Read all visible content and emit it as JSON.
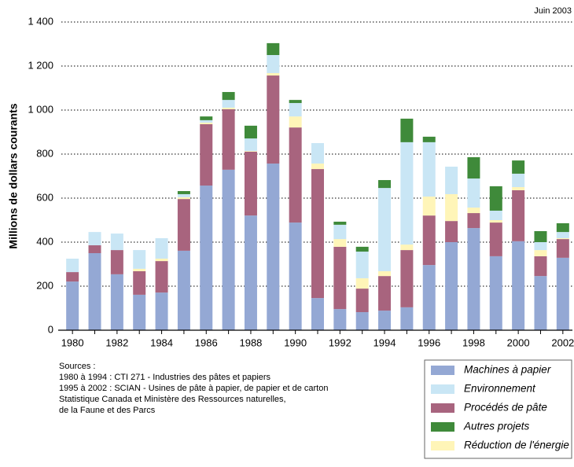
{
  "chart_data": {
    "type": "stacked_bar",
    "annotation": "Juin 2003",
    "ylabel": "Millions de dollars courants",
    "categories": [
      "1980",
      null,
      "1982",
      null,
      "1984",
      null,
      "1986",
      null,
      "1988",
      null,
      "1990",
      null,
      "1992",
      null,
      "1994",
      null,
      "1996",
      null,
      "1998",
      null,
      "2000",
      null,
      "2002"
    ],
    "series": [
      {
        "name": "Machines à papier",
        "color": "#94a8d4",
        "values": [
          221,
          350,
          254,
          161,
          171,
          361,
          657,
          729,
          521,
          757,
          489,
          146,
          96,
          82,
          89,
          104,
          296,
          400,
          464,
          336,
          404,
          246,
          329
        ]
      },
      {
        "name": "Environnement",
        "color": "#c9e6f5",
        "values": [
          61,
          60,
          75,
          85,
          93,
          14,
          11,
          35,
          57,
          82,
          61,
          93,
          65,
          121,
          378,
          465,
          247,
          125,
          132,
          43,
          61,
          36,
          28
        ]
      },
      {
        "name": "Procédés de pâte",
        "color": "#a8647e",
        "values": [
          43,
          36,
          110,
          107,
          143,
          235,
          279,
          275,
          290,
          400,
          432,
          586,
          283,
          107,
          157,
          260,
          225,
          96,
          68,
          153,
          232,
          90,
          85
        ]
      },
      {
        "name": "Autres projets",
        "color": "#3f8a3a",
        "values": [
          0,
          0,
          0,
          0,
          0,
          14,
          17,
          36,
          58,
          54,
          14,
          0,
          14,
          22,
          36,
          107,
          25,
          0,
          97,
          111,
          60,
          50,
          40
        ]
      },
      {
        "name": "Réduction de l'énergie",
        "color": "#fff5b8",
        "values": [
          0,
          0,
          0,
          11,
          11,
          8,
          7,
          7,
          3,
          11,
          50,
          25,
          35,
          47,
          22,
          25,
          86,
          122,
          25,
          11,
          14,
          28,
          4
        ]
      }
    ],
    "stack_order": [
      0,
      2,
      4,
      1,
      3
    ],
    "ylim": [
      0,
      1400
    ],
    "yticks": [
      0,
      200,
      400,
      600,
      800,
      {
        "value": 1000,
        "label": "1 000"
      },
      {
        "value": 1200,
        "label": "1 200"
      },
      {
        "value": 1400,
        "label": "1 400"
      }
    ],
    "grid": true,
    "legend": "bottom-right",
    "sources": [
      "Sources :",
      "1980 à 1994 : CTI 271 - Industries des pâtes et papiers",
      "1995 à 2002 : SCIAN - Usines de pâte à papier, de papier et de carton",
      "Statistique Canada et Ministère des Ressources naturelles,",
      "de la Faune et des Parcs"
    ]
  }
}
